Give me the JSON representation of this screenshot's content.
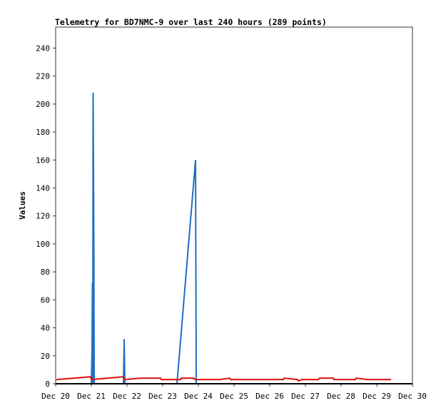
{
  "chart_data": {
    "type": "line",
    "title": "Telemetry for BD7NMC-9 over last 240 hours (289 points)",
    "ylabel": "Values",
    "xlim": [
      20,
      30
    ],
    "xticks": [
      {
        "value": 20,
        "label": "Dec 20"
      },
      {
        "value": 21,
        "label": "Dec 21"
      },
      {
        "value": 22,
        "label": "Dec 22"
      },
      {
        "value": 23,
        "label": "Dec 23"
      },
      {
        "value": 24,
        "label": "Dec 24"
      },
      {
        "value": 25,
        "label": "Dec 25"
      },
      {
        "value": 26,
        "label": "Dec 26"
      },
      {
        "value": 27,
        "label": "Dec 27"
      },
      {
        "value": 28,
        "label": "Dec 28"
      },
      {
        "value": 29,
        "label": "Dec 29"
      },
      {
        "value": 30,
        "label": "Dec 30"
      }
    ],
    "ylim": [
      0,
      255
    ],
    "yticks": [
      0,
      20,
      40,
      60,
      80,
      100,
      120,
      140,
      160,
      180,
      200,
      220,
      240
    ],
    "series": [
      {
        "color": "#1f6fc5",
        "x": [
          20.0,
          21.0,
          21.02,
          21.03,
          21.04,
          21.05,
          21.07,
          21.08,
          21.9,
          21.92,
          21.94,
          23.4,
          23.92,
          23.94,
          29.4
        ],
        "values": [
          0,
          0,
          25,
          72,
          0,
          208,
          104,
          0,
          0,
          32,
          0,
          0,
          160,
          0,
          0
        ]
      },
      {
        "color": "#e01010",
        "x": [
          20.02,
          20.98,
          21.0,
          21.9,
          21.92,
          22.4,
          22.94,
          22.96,
          23.5,
          23.52,
          23.88,
          23.9,
          24.6,
          24.88,
          24.9,
          26.38,
          26.4,
          26.78,
          26.8,
          26.9,
          27.36,
          27.4,
          27.78,
          27.8,
          28.4,
          28.42,
          28.76,
          28.8,
          29.4
        ],
        "values": [
          3,
          5,
          3,
          5,
          3,
          4,
          4,
          3,
          3,
          4,
          4,
          3,
          3,
          4,
          3,
          3,
          4,
          3,
          2,
          3,
          3,
          4,
          4,
          3,
          3,
          4,
          3,
          3,
          3
        ]
      }
    ]
  }
}
